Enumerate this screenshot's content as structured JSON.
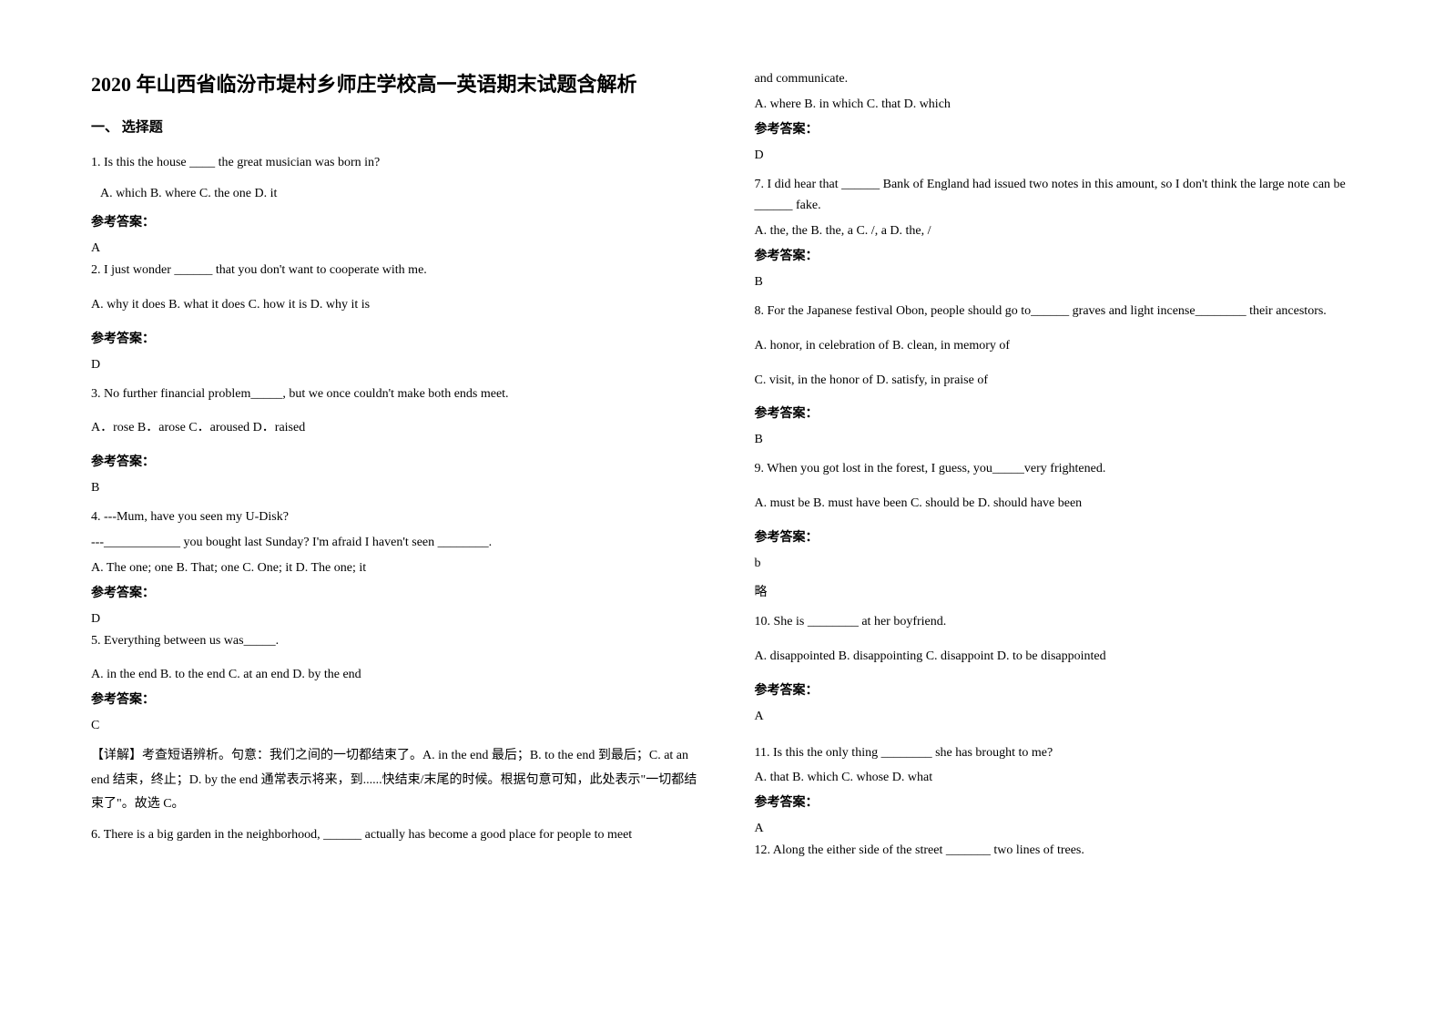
{
  "title": "2020 年山西省临汾市堤村乡师庄学校高一英语期末试题含解析",
  "section1_header": "一、 选择题",
  "answer_label": "参考答案：",
  "left": {
    "q1": "1.  Is this the house ____ the great musician was born in?",
    "q1_opts": "  A. which         B. where        C. the one        D. it",
    "a1": "A",
    "q2": " 2.  I just wonder ______ that you don't want to cooperate with me.",
    "q2_opts": " A. why it does    B. what it does    C. how it is    D. why it is",
    "a2": "D",
    "q3": "3. No further financial problem_____, but we once couldn't make both ends meet.",
    "q3_opts": "A．rose      B．arose        C．aroused        D．raised",
    "a3": "B",
    "q4_l1": "4. ---Mum, have you seen my U-Disk?",
    "q4_l2": "   ---____________ you bought last Sunday? I'm afraid I haven't seen ________.",
    "q4_opts": "   A. The one; one     B. That; one       C. One; it        D. The one; it",
    "a4": "D",
    "q5": "5. Everything between us was_____.",
    "q5_opts": "A. in the end    B. to the end    C. at an end    D. by the end",
    "a5": "C",
    "exp5": "【详解】考查短语辨析。句意：我们之间的一切都结束了。A. in the end 最后；B. to the end 到最后；C. at an end 结束，终止；D. by the end 通常表示将来，到......快结束/末尾的时候。根据句意可知，此处表示\"一切都结束了\"。故选 C。",
    "q6": "6. There is a big garden in the neighborhood, ______ actually has become a good place for people to meet"
  },
  "right": {
    "q6_cont": "and communicate.",
    "q6_opts": "A. where    B. in which    C. that     D. which",
    "a6": "D",
    "q7": "7. I did hear that ______ Bank of England had issued two notes in this amount, so I don't think the large note can be ______ fake.",
    "q7_opts": "A. the, the     B. the, a     C. /, a     D. the, /",
    "a7": "B",
    "q8": "8. For the Japanese festival Obon, people should go to______ graves and light incense________ their ancestors.",
    "q8_opts1": "   A. honor, in celebration of       B. clean, in memory of",
    "q8_opts2": "C. visit, in the honor of        D. satisfy, in praise of",
    "a8": "B",
    "q9": "9.       When you got lost in the forest, I guess, you_____very frightened.",
    "q9_opts": "    A. must be                B. must have been    C. should be               D. should have been",
    "a9": "b",
    "a9_note": "略",
    "q10": "10. She is ________ at her boyfriend.",
    "q10_opts": "A. disappointed     B. disappointing    C. disappoint    D. to be disappointed",
    "a10": "A",
    "q11": "11. Is this the only thing ________ she has brought to me?",
    "q11_opts": "    A. that           B. which         C. whose           D. what",
    "a11": "A",
    "q12": "12. Along the either side of the street _______ two lines of trees."
  }
}
